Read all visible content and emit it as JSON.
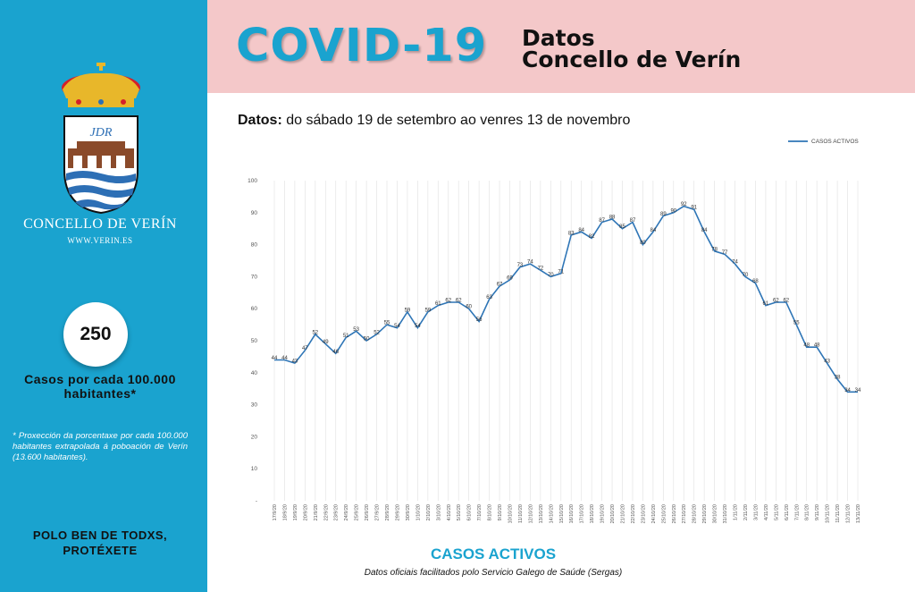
{
  "header": {
    "title": "COVID-19",
    "subtitle_line1": "Datos",
    "subtitle_line2": "Concello de Verín",
    "range_label": "Datos:",
    "range_text": "do sábado 19 de setembro ao venres 13 de novembro"
  },
  "sidebar": {
    "coat_monogram": "JDR",
    "town": "CONCELLO DE VERÍN",
    "website": "WWW.VERIN.ES",
    "rate_value": "250",
    "rate_label": "Casos por cada 100.000 habitantes*",
    "note": "* Proxección da porcentaxe por cada 100.000 habitantes extrapolada á poboación de Verín (13.600 habitantes).",
    "slogan_line1": "POLO BEN DE TODXS,",
    "slogan_line2": "PROTÉXETE"
  },
  "footer": {
    "chart_title": "CASOS ACTIVOS",
    "source": "Datos oficiais facilitados polo Servicio Galego de Saúde (Sergas)"
  },
  "colors": {
    "accent": "#1aa3cf",
    "header_bg": "#f4c8c9",
    "line": "#2e75b6"
  },
  "chart_data": {
    "type": "line",
    "title": "CASOS ACTIVOS",
    "ylim": [
      0,
      100
    ],
    "y_ticks": [
      "-",
      "10",
      "20",
      "30",
      "40",
      "50",
      "60",
      "70",
      "80",
      "90",
      "100"
    ],
    "legend_position": "top-right",
    "grid": "vertical",
    "categories": [
      "17/9/20",
      "18/9/20",
      "19/9/20",
      "20/9/20",
      "21/9/20",
      "22/9/20",
      "23/9/20",
      "24/9/20",
      "25/9/20",
      "26/9/20",
      "27/9/20",
      "28/9/20",
      "29/9/20",
      "30/9/20",
      "1/10/20",
      "2/10/20",
      "3/10/20",
      "4/10/20",
      "5/10/20",
      "6/10/20",
      "7/10/20",
      "8/10/20",
      "9/10/20",
      "10/10/20",
      "11/10/20",
      "12/10/20",
      "13/10/20",
      "14/10/20",
      "15/10/20",
      "16/10/20",
      "17/10/20",
      "18/10/20",
      "19/10/20",
      "20/10/20",
      "21/10/20",
      "22/10/20",
      "23/10/20",
      "24/10/20",
      "25/10/20",
      "26/10/20",
      "27/10/20",
      "28/10/20",
      "29/10/20",
      "30/10/20",
      "31/10/20",
      "1/11/20",
      "2/11/20",
      "3/11/20",
      "4/11/20",
      "5/11/20",
      "6/11/20",
      "7/11/20",
      "8/11/20",
      "9/11/20",
      "10/11/20",
      "11/11/20",
      "12/11/20",
      "13/11/20"
    ],
    "series": [
      {
        "name": "CASOS ACTIVOS",
        "values": [
          44,
          44,
          43,
          47,
          52,
          49,
          46,
          51,
          53,
          50,
          52,
          55,
          54,
          59,
          54,
          59,
          61,
          62,
          62,
          60,
          56,
          63,
          67,
          69,
          73,
          74,
          72,
          70,
          71,
          83,
          84,
          82,
          87,
          88,
          85,
          87,
          80,
          84,
          89,
          90,
          92,
          91,
          84,
          78,
          77,
          74,
          70,
          68,
          61,
          62,
          62,
          55,
          48,
          48,
          43,
          38,
          34,
          34
        ]
      }
    ]
  }
}
